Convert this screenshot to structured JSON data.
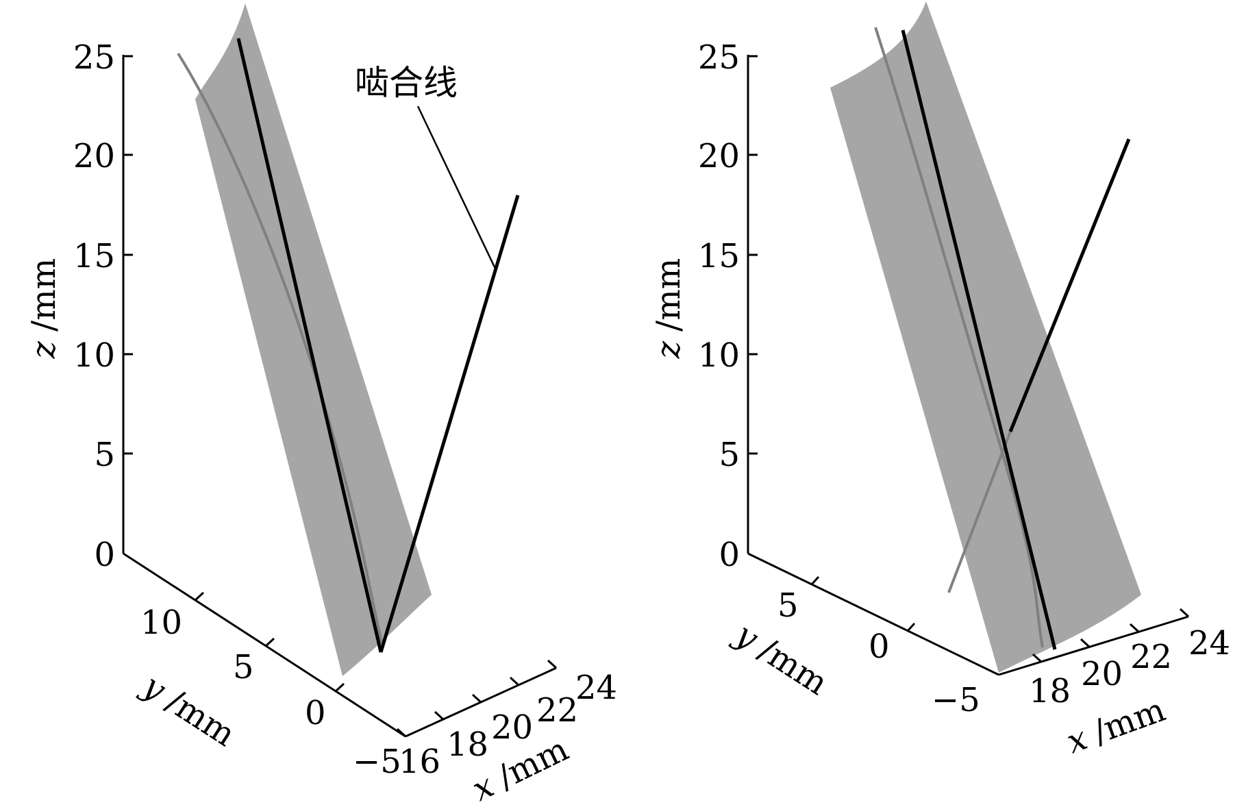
{
  "chart_data": [
    {
      "type": "surface3d",
      "panel": "left",
      "x": {
        "label_var": "x",
        "label_unit": "/mm",
        "ticks": [
          16,
          18,
          20,
          22,
          24
        ],
        "range": [
          16,
          24
        ]
      },
      "y": {
        "label_var": "y",
        "label_unit": "/mm",
        "ticks": [
          -5,
          0,
          5,
          10
        ],
        "range": [
          -5,
          13
        ]
      },
      "z": {
        "label_var": "z",
        "label_unit": "/mm",
        "ticks": [
          0,
          5,
          10,
          15,
          20,
          25
        ],
        "range": [
          0,
          25
        ]
      },
      "annotation": {
        "text": "啮合线"
      },
      "elements": [
        "tooth surface",
        "contact lines",
        "line of action"
      ]
    },
    {
      "type": "surface3d",
      "panel": "right",
      "x": {
        "label_var": "x",
        "label_unit": "/mm",
        "ticks": [
          18,
          20,
          22,
          24
        ],
        "range": [
          17,
          24
        ]
      },
      "y": {
        "label_var": "y",
        "label_unit": "/mm",
        "ticks": [
          -5,
          0,
          5
        ],
        "range": [
          -5,
          8
        ]
      },
      "z": {
        "label_var": "z",
        "label_unit": "/mm",
        "ticks": [
          0,
          5,
          10,
          15,
          20,
          25
        ],
        "range": [
          0,
          25
        ]
      },
      "elements": [
        "tooth surface",
        "contact lines",
        "line of action"
      ]
    }
  ],
  "colors": {
    "surface": "#a6a6a6",
    "curve": "#000000",
    "hidden_curve": "#808080"
  }
}
